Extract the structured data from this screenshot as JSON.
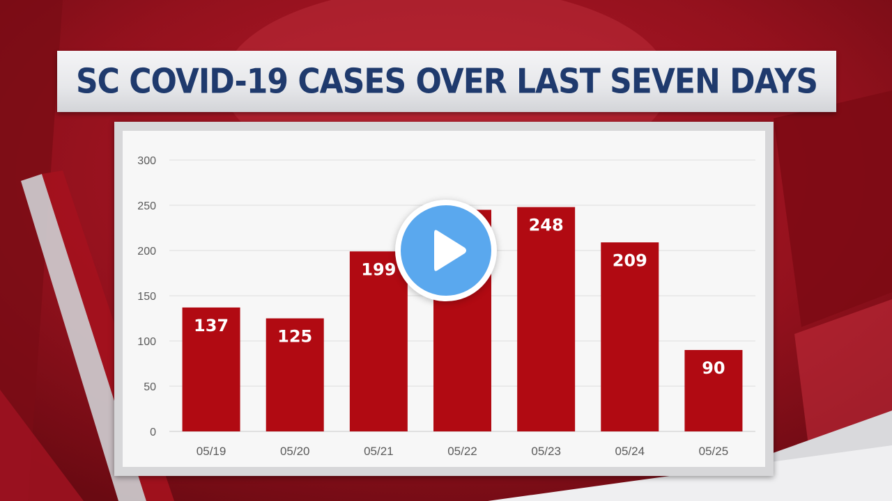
{
  "title": "SC COVID-19 CASES OVER LAST SEVEN DAYS",
  "colors": {
    "bar": "#b10a12",
    "title_text": "#1f3a6d",
    "background_red": "#8e0d18",
    "play_blue": "#5aa8ee"
  },
  "play_button": {
    "icon": "play-icon"
  },
  "chart_data": {
    "type": "bar",
    "title": "",
    "xlabel": "",
    "ylabel": "",
    "categories": [
      "05/19",
      "05/20",
      "05/21",
      "05/22",
      "05/23",
      "05/24",
      "05/25"
    ],
    "values": [
      137,
      125,
      199,
      245,
      248,
      209,
      90
    ],
    "data_labels": [
      "137",
      "125",
      "199",
      "",
      "248",
      "209",
      "90"
    ],
    "ylim": [
      0,
      300
    ],
    "yticks": [
      0,
      50,
      100,
      150,
      200,
      250,
      300
    ],
    "grid": true,
    "legend": "none"
  }
}
